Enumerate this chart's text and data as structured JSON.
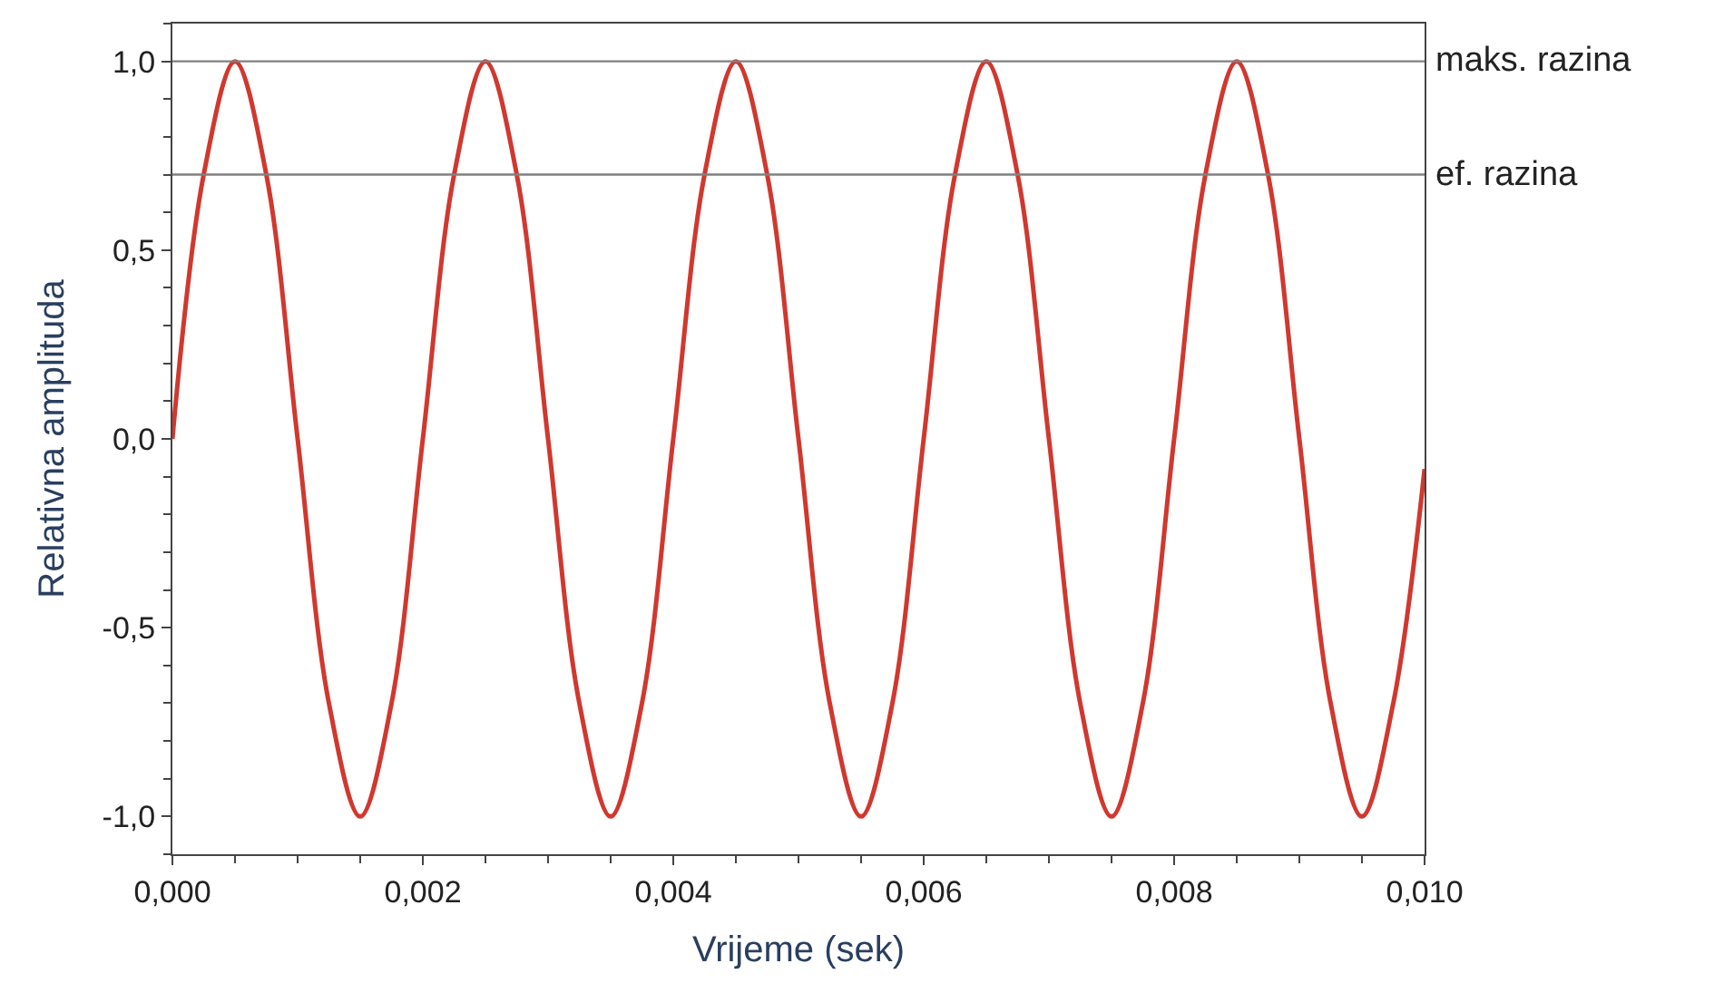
{
  "chart_data": {
    "type": "line",
    "xlabel": "Vrijeme (sek)",
    "ylabel": "Relativna amplituda",
    "x": [
      0,
      0.00025,
      0.0005,
      0.00075,
      0.001,
      0.00125,
      0.0015,
      0.00175,
      0.002,
      0.00225,
      0.0025,
      0.00275,
      0.003,
      0.00325,
      0.0035,
      0.00375,
      0.004,
      0.00425,
      0.0045,
      0.00475,
      0.005,
      0.00525,
      0.0055,
      0.00575,
      0.006,
      0.00625,
      0.0065,
      0.00675,
      0.007,
      0.00725,
      0.0075,
      0.00775,
      0.008,
      0.00825,
      0.0085,
      0.00875,
      0.009,
      0.00925,
      0.0095,
      0.00975,
      0.01
    ],
    "series": [
      {
        "color": "#d0382f",
        "values": [
          0,
          0.7,
          1,
          0.7,
          0,
          -0.7,
          -1,
          -0.7,
          0,
          0.7,
          1,
          0.7,
          0,
          -0.7,
          -1,
          -0.7,
          0,
          0.7,
          1,
          0.7,
          0,
          -0.7,
          -1,
          -0.7,
          0,
          0.7,
          1,
          0.7,
          0,
          -0.7,
          -1,
          -0.7,
          0,
          0.7,
          1,
          0.7,
          0,
          -0.7,
          -1,
          -0.7,
          -0.08
        ]
      }
    ],
    "xlim": [
      0,
      0.01
    ],
    "ylim": [
      -1.1,
      1.1
    ],
    "xticks": [
      {
        "value": 0,
        "label": "0,000"
      },
      {
        "value": 0.002,
        "label": "0,002"
      },
      {
        "value": 0.004,
        "label": "0,004"
      },
      {
        "value": 0.006,
        "label": "0,006"
      },
      {
        "value": 0.008,
        "label": "0,008"
      },
      {
        "value": 0.01,
        "label": "0,010"
      }
    ],
    "yticks": [
      {
        "value": -1,
        "label": "-1,0"
      },
      {
        "value": -0.5,
        "label": "-0,5"
      },
      {
        "value": 0,
        "label": "0,0"
      },
      {
        "value": 0.5,
        "label": "0,5"
      },
      {
        "value": 1,
        "label": "1,0"
      }
    ],
    "ref_lines": [
      {
        "axis": "y",
        "value": 1,
        "label": "maks. razina",
        "color": "#808080"
      },
      {
        "axis": "y",
        "value": 0.7,
        "label": "ef. razina",
        "color": "#808080"
      }
    ],
    "marker": "none",
    "line_style": "solid"
  }
}
